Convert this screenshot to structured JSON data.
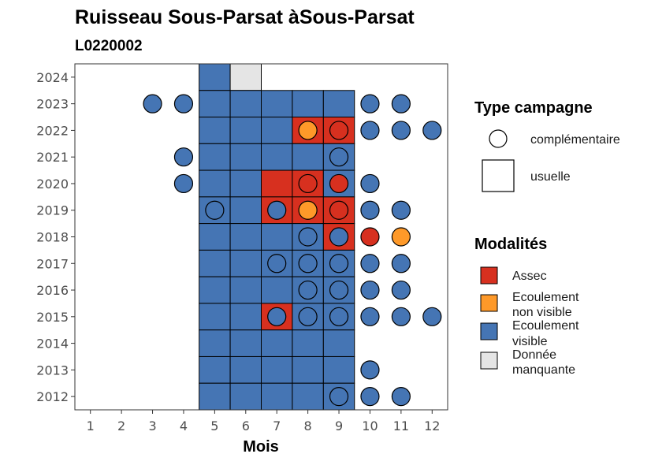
{
  "chart_data": {
    "type": "heatmap",
    "title": "Ruisseau Sous-Parsat àSous-Parsat",
    "subtitle": "L0220002",
    "xlabel": "Mois",
    "ylabel": "",
    "x_ticks": [
      "1",
      "2",
      "3",
      "4",
      "5",
      "6",
      "7",
      "8",
      "9",
      "10",
      "11",
      "12"
    ],
    "y_ticks": [
      "2012",
      "2013",
      "2014",
      "2015",
      "2016",
      "2017",
      "2018",
      "2019",
      "2020",
      "2021",
      "2022",
      "2023",
      "2024"
    ],
    "xlim": [
      0.5,
      12.5
    ],
    "ylim": [
      2011.5,
      2024.5
    ],
    "grid": false,
    "legend_position": "right",
    "colors": {
      "Assec": "#d7301f",
      "Ecoulement non visible": "#fe9929",
      "Ecoulement visible": "#4575b4",
      "Donnée manquante": "#e5e5e5"
    },
    "legend": {
      "type_title": "Type campagne",
      "type_items": [
        {
          "key": "complementaire",
          "label": "complémentaire"
        },
        {
          "key": "usuelle",
          "label": "usuelle"
        }
      ],
      "modalites_title": "Modalités",
      "modalites_items": [
        {
          "key": "Assec",
          "lines": [
            "Assec"
          ],
          "color": "#d7301f"
        },
        {
          "key": "Ecoulement non visible",
          "lines": [
            "Ecoulement",
            "non visible"
          ],
          "color": "#fe9929"
        },
        {
          "key": "Ecoulement visible",
          "lines": [
            "Ecoulement",
            "visible"
          ],
          "color": "#4575b4"
        },
        {
          "key": "Donnée manquante",
          "lines": [
            "Donnée",
            "manquante"
          ],
          "color": "#e5e5e5"
        }
      ]
    },
    "usuelle": [
      {
        "year": 2024,
        "month": 5,
        "status": "Ecoulement visible"
      },
      {
        "year": 2024,
        "month": 6,
        "status": "Donnée manquante"
      },
      {
        "year": 2023,
        "month": 5,
        "status": "Ecoulement visible"
      },
      {
        "year": 2023,
        "month": 6,
        "status": "Ecoulement visible"
      },
      {
        "year": 2023,
        "month": 7,
        "status": "Ecoulement visible"
      },
      {
        "year": 2023,
        "month": 8,
        "status": "Ecoulement visible"
      },
      {
        "year": 2023,
        "month": 9,
        "status": "Ecoulement visible"
      },
      {
        "year": 2022,
        "month": 5,
        "status": "Ecoulement visible"
      },
      {
        "year": 2022,
        "month": 6,
        "status": "Ecoulement visible"
      },
      {
        "year": 2022,
        "month": 7,
        "status": "Ecoulement visible"
      },
      {
        "year": 2022,
        "month": 8,
        "status": "Assec"
      },
      {
        "year": 2022,
        "month": 9,
        "status": "Assec"
      },
      {
        "year": 2021,
        "month": 5,
        "status": "Ecoulement visible"
      },
      {
        "year": 2021,
        "month": 6,
        "status": "Ecoulement visible"
      },
      {
        "year": 2021,
        "month": 7,
        "status": "Ecoulement visible"
      },
      {
        "year": 2021,
        "month": 8,
        "status": "Ecoulement visible"
      },
      {
        "year": 2021,
        "month": 9,
        "status": "Ecoulement visible"
      },
      {
        "year": 2020,
        "month": 5,
        "status": "Ecoulement visible"
      },
      {
        "year": 2020,
        "month": 6,
        "status": "Ecoulement visible"
      },
      {
        "year": 2020,
        "month": 7,
        "status": "Assec"
      },
      {
        "year": 2020,
        "month": 8,
        "status": "Assec"
      },
      {
        "year": 2020,
        "month": 9,
        "status": "Ecoulement visible"
      },
      {
        "year": 2019,
        "month": 5,
        "status": "Ecoulement visible"
      },
      {
        "year": 2019,
        "month": 6,
        "status": "Ecoulement visible"
      },
      {
        "year": 2019,
        "month": 7,
        "status": "Assec"
      },
      {
        "year": 2019,
        "month": 8,
        "status": "Assec"
      },
      {
        "year": 2019,
        "month": 9,
        "status": "Assec"
      },
      {
        "year": 2018,
        "month": 5,
        "status": "Ecoulement visible"
      },
      {
        "year": 2018,
        "month": 6,
        "status": "Ecoulement visible"
      },
      {
        "year": 2018,
        "month": 7,
        "status": "Ecoulement visible"
      },
      {
        "year": 2018,
        "month": 8,
        "status": "Ecoulement visible"
      },
      {
        "year": 2018,
        "month": 9,
        "status": "Assec"
      },
      {
        "year": 2017,
        "month": 5,
        "status": "Ecoulement visible"
      },
      {
        "year": 2017,
        "month": 6,
        "status": "Ecoulement visible"
      },
      {
        "year": 2017,
        "month": 7,
        "status": "Ecoulement visible"
      },
      {
        "year": 2017,
        "month": 8,
        "status": "Ecoulement visible"
      },
      {
        "year": 2017,
        "month": 9,
        "status": "Ecoulement visible"
      },
      {
        "year": 2016,
        "month": 5,
        "status": "Ecoulement visible"
      },
      {
        "year": 2016,
        "month": 6,
        "status": "Ecoulement visible"
      },
      {
        "year": 2016,
        "month": 7,
        "status": "Ecoulement visible"
      },
      {
        "year": 2016,
        "month": 8,
        "status": "Ecoulement visible"
      },
      {
        "year": 2016,
        "month": 9,
        "status": "Ecoulement visible"
      },
      {
        "year": 2015,
        "month": 5,
        "status": "Ecoulement visible"
      },
      {
        "year": 2015,
        "month": 6,
        "status": "Ecoulement visible"
      },
      {
        "year": 2015,
        "month": 7,
        "status": "Assec"
      },
      {
        "year": 2015,
        "month": 8,
        "status": "Ecoulement visible"
      },
      {
        "year": 2015,
        "month": 9,
        "status": "Ecoulement visible"
      },
      {
        "year": 2014,
        "month": 5,
        "status": "Ecoulement visible"
      },
      {
        "year": 2014,
        "month": 6,
        "status": "Ecoulement visible"
      },
      {
        "year": 2014,
        "month": 7,
        "status": "Ecoulement visible"
      },
      {
        "year": 2014,
        "month": 8,
        "status": "Ecoulement visible"
      },
      {
        "year": 2014,
        "month": 9,
        "status": "Ecoulement visible"
      },
      {
        "year": 2013,
        "month": 5,
        "status": "Ecoulement visible"
      },
      {
        "year": 2013,
        "month": 6,
        "status": "Ecoulement visible"
      },
      {
        "year": 2013,
        "month": 7,
        "status": "Ecoulement visible"
      },
      {
        "year": 2013,
        "month": 8,
        "status": "Ecoulement visible"
      },
      {
        "year": 2013,
        "month": 9,
        "status": "Ecoulement visible"
      },
      {
        "year": 2012,
        "month": 5,
        "status": "Ecoulement visible"
      },
      {
        "year": 2012,
        "month": 6,
        "status": "Ecoulement visible"
      },
      {
        "year": 2012,
        "month": 7,
        "status": "Ecoulement visible"
      },
      {
        "year": 2012,
        "month": 8,
        "status": "Ecoulement visible"
      },
      {
        "year": 2012,
        "month": 9,
        "status": "Ecoulement visible"
      }
    ],
    "complementaire": [
      {
        "year": 2023,
        "month": 3,
        "status": "Ecoulement visible"
      },
      {
        "year": 2023,
        "month": 4,
        "status": "Ecoulement visible"
      },
      {
        "year": 2023,
        "month": 10,
        "status": "Ecoulement visible"
      },
      {
        "year": 2023,
        "month": 11,
        "status": "Ecoulement visible"
      },
      {
        "year": 2022,
        "month": 8,
        "status": "Ecoulement non visible"
      },
      {
        "year": 2022,
        "month": 9,
        "status": "Assec"
      },
      {
        "year": 2022,
        "month": 10,
        "status": "Ecoulement visible"
      },
      {
        "year": 2022,
        "month": 11,
        "status": "Ecoulement visible"
      },
      {
        "year": 2022,
        "month": 12,
        "status": "Ecoulement visible"
      },
      {
        "year": 2021,
        "month": 4,
        "status": "Ecoulement visible"
      },
      {
        "year": 2021,
        "month": 9,
        "status": "Ecoulement visible"
      },
      {
        "year": 2020,
        "month": 4,
        "status": "Ecoulement visible"
      },
      {
        "year": 2020,
        "month": 8,
        "status": "Assec"
      },
      {
        "year": 2020,
        "month": 9,
        "status": "Assec"
      },
      {
        "year": 2020,
        "month": 10,
        "status": "Ecoulement visible"
      },
      {
        "year": 2019,
        "month": 5,
        "status": "Ecoulement visible"
      },
      {
        "year": 2019,
        "month": 7,
        "status": "Ecoulement visible"
      },
      {
        "year": 2019,
        "month": 8,
        "status": "Ecoulement non visible"
      },
      {
        "year": 2019,
        "month": 9,
        "status": "Assec"
      },
      {
        "year": 2019,
        "month": 10,
        "status": "Ecoulement visible"
      },
      {
        "year": 2019,
        "month": 11,
        "status": "Ecoulement visible"
      },
      {
        "year": 2018,
        "month": 8,
        "status": "Ecoulement visible"
      },
      {
        "year": 2018,
        "month": 9,
        "status": "Ecoulement visible"
      },
      {
        "year": 2018,
        "month": 10,
        "status": "Assec"
      },
      {
        "year": 2018,
        "month": 11,
        "status": "Ecoulement non visible"
      },
      {
        "year": 2017,
        "month": 7,
        "status": "Ecoulement visible"
      },
      {
        "year": 2017,
        "month": 8,
        "status": "Ecoulement visible"
      },
      {
        "year": 2017,
        "month": 9,
        "status": "Ecoulement visible"
      },
      {
        "year": 2017,
        "month": 10,
        "status": "Ecoulement visible"
      },
      {
        "year": 2017,
        "month": 11,
        "status": "Ecoulement visible"
      },
      {
        "year": 2016,
        "month": 8,
        "status": "Ecoulement visible"
      },
      {
        "year": 2016,
        "month": 9,
        "status": "Ecoulement visible"
      },
      {
        "year": 2016,
        "month": 10,
        "status": "Ecoulement visible"
      },
      {
        "year": 2016,
        "month": 11,
        "status": "Ecoulement visible"
      },
      {
        "year": 2015,
        "month": 7,
        "status": "Ecoulement visible"
      },
      {
        "year": 2015,
        "month": 8,
        "status": "Ecoulement visible"
      },
      {
        "year": 2015,
        "month": 9,
        "status": "Ecoulement visible"
      },
      {
        "year": 2015,
        "month": 10,
        "status": "Ecoulement visible"
      },
      {
        "year": 2015,
        "month": 11,
        "status": "Ecoulement visible"
      },
      {
        "year": 2015,
        "month": 12,
        "status": "Ecoulement visible"
      },
      {
        "year": 2013,
        "month": 10,
        "status": "Ecoulement visible"
      },
      {
        "year": 2012,
        "month": 9,
        "status": "Ecoulement visible"
      },
      {
        "year": 2012,
        "month": 10,
        "status": "Ecoulement visible"
      },
      {
        "year": 2012,
        "month": 11,
        "status": "Ecoulement visible"
      }
    ]
  }
}
